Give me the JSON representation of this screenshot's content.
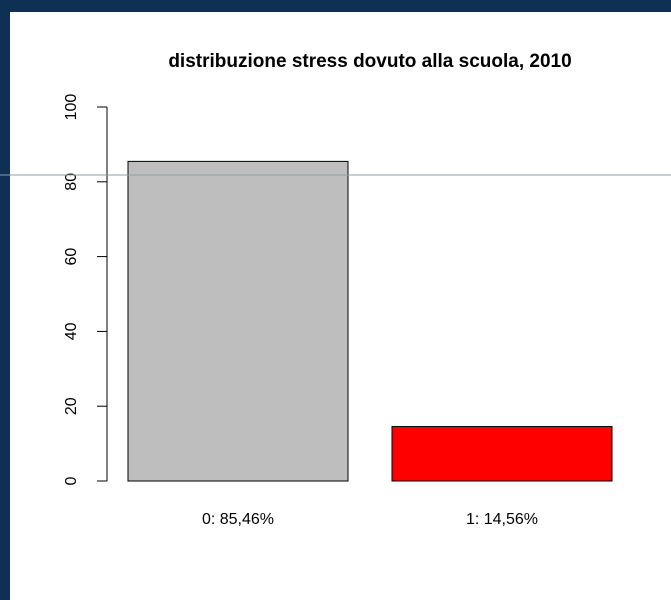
{
  "chart_data": {
    "type": "bar",
    "title": "distribuzione stress dovuto alla scuola, 2010",
    "categories": [
      "0: 85,46%",
      "1: 14,56%"
    ],
    "values": [
      85.46,
      14.56
    ],
    "colors": [
      "#bebebe",
      "#ff0000"
    ],
    "ylim": [
      0,
      100
    ],
    "yticks": [
      0,
      20,
      40,
      60,
      80,
      100
    ],
    "grid": false
  }
}
